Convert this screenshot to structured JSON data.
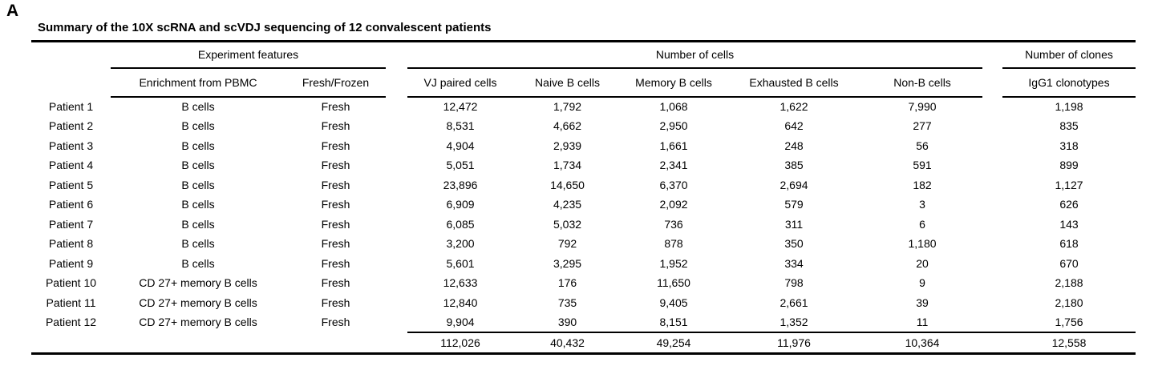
{
  "figure_label": "A",
  "table": {
    "title": "Summary of the 10X scRNA and scVDJ sequencing of 12 convalescent patients",
    "group_headers": {
      "experiment_features": "Experiment features",
      "number_of_cells": "Number of cells",
      "number_of_clones": "Number of clones"
    },
    "column_headers": {
      "enrichment": "Enrichment from PBMC",
      "fresh_frozen": "Fresh/Frozen",
      "vj_paired_cells": "VJ paired cells",
      "naive_b_cells": "Naive B cells",
      "memory_b_cells": "Memory B cells",
      "exhausted_b_cells": "Exhausted B cells",
      "non_b_cells": "Non-B cells",
      "igg1_clonotypes": "IgG1 clonotypes"
    },
    "rows": [
      [
        "Patient 1",
        "B cells",
        "Fresh",
        "12,472",
        "1,792",
        "1,068",
        "1,622",
        "7,990",
        "1,198"
      ],
      [
        "Patient 2",
        "B cells",
        "Fresh",
        "8,531",
        "4,662",
        "2,950",
        "642",
        "277",
        "835"
      ],
      [
        "Patient 3",
        "B cells",
        "Fresh",
        "4,904",
        "2,939",
        "1,661",
        "248",
        "56",
        "318"
      ],
      [
        "Patient 4",
        "B cells",
        "Fresh",
        "5,051",
        "1,734",
        "2,341",
        "385",
        "591",
        "899"
      ],
      [
        "Patient 5",
        "B cells",
        "Fresh",
        "23,896",
        "14,650",
        "6,370",
        "2,694",
        "182",
        "1,127"
      ],
      [
        "Patient 6",
        "B cells",
        "Fresh",
        "6,909",
        "4,235",
        "2,092",
        "579",
        "3",
        "626"
      ],
      [
        "Patient 7",
        "B cells",
        "Fresh",
        "6,085",
        "5,032",
        "736",
        "311",
        "6",
        "143"
      ],
      [
        "Patient 8",
        "B cells",
        "Fresh",
        "3,200",
        "792",
        "878",
        "350",
        "1,180",
        "618"
      ],
      [
        "Patient 9",
        "B cells",
        "Fresh",
        "5,601",
        "3,295",
        "1,952",
        "334",
        "20",
        "670"
      ],
      [
        "Patient 10",
        "CD 27+ memory B cells",
        "Fresh",
        "12,633",
        "176",
        "11,650",
        "798",
        "9",
        "2,188"
      ],
      [
        "Patient 11",
        "CD 27+ memory B cells",
        "Fresh",
        "12,840",
        "735",
        "9,405",
        "2,661",
        "39",
        "2,180"
      ],
      [
        "Patient 12",
        "CD 27+ memory B cells",
        "Fresh",
        "9,904",
        "390",
        "8,151",
        "1,352",
        "11",
        "1,756"
      ]
    ],
    "totals": [
      "112,026",
      "40,432",
      "49,254",
      "11,976",
      "10,364",
      "12,558"
    ],
    "text_color": "#000000",
    "background_color": "#ffffff"
  }
}
